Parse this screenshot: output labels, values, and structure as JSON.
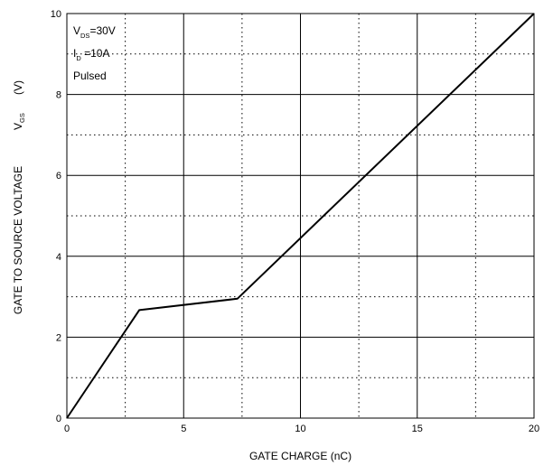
{
  "chart_data": {
    "type": "line",
    "title": "",
    "xlabel": "GATE CHARGE (nC)",
    "ylabel": {
      "main": "GATE TO SOURCE VOLTAGE",
      "symbol": "V",
      "symbol_sub": "GS",
      "unit": "(V)"
    },
    "xlim": [
      0,
      20
    ],
    "ylim": [
      0,
      10
    ],
    "x_ticks": [
      0,
      5,
      10,
      15,
      20
    ],
    "y_ticks": [
      0,
      2,
      4,
      6,
      8,
      10
    ],
    "grid": {
      "solid_x": [
        5,
        10,
        15
      ],
      "dotted_x": [
        2.5,
        7.5,
        12.5,
        17.5
      ],
      "solid_y": [
        2,
        4,
        6,
        8
      ],
      "dotted_y": [
        1,
        3,
        5,
        7,
        9
      ]
    },
    "annotations": [
      {
        "main": "V",
        "sub": "DS",
        "rest": "=30V"
      },
      {
        "main": "I",
        "sub": "D",
        "rest": " =10A"
      },
      {
        "main": "Pulsed",
        "sub": "",
        "rest": ""
      }
    ],
    "series": [
      {
        "x": [
          0,
          3.1,
          7.3,
          20
        ],
        "y": [
          0,
          2.67,
          2.95,
          10
        ]
      }
    ],
    "line_color": "#000000"
  }
}
